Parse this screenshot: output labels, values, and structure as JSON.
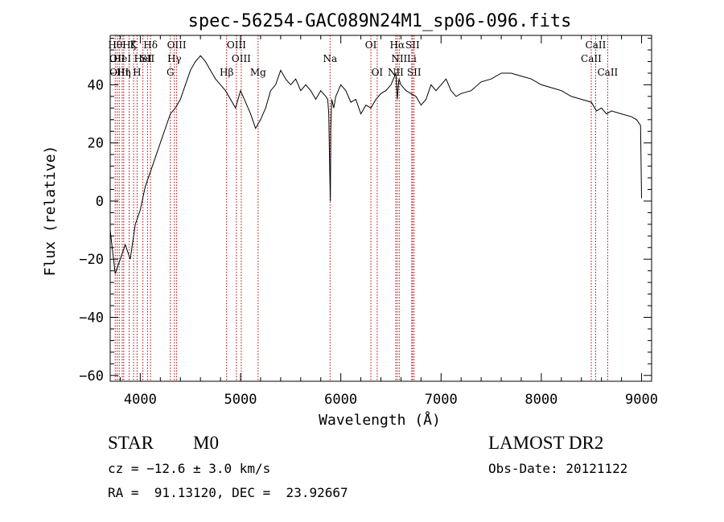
{
  "chart_data": {
    "type": "line",
    "title": "spec-56254-GAC089N24M1_sp06-096.fits",
    "xlabel": "Wavelength (Å)",
    "ylabel": "Flux (relative)",
    "xlim": [
      3700,
      9100
    ],
    "ylim": [
      -62,
      57
    ],
    "x_ticks": [
      4000,
      5000,
      6000,
      7000,
      8000,
      9000
    ],
    "y_ticks": [
      -60,
      -40,
      -20,
      0,
      20,
      40
    ],
    "grid": false,
    "line_color": "#000000",
    "marker_color": "#b00000",
    "series": [
      {
        "name": "flux",
        "x": [
          3700,
          3750,
          3800,
          3850,
          3900,
          3950,
          4000,
          4050,
          4100,
          4150,
          4200,
          4250,
          4300,
          4350,
          4400,
          4450,
          4500,
          4550,
          4600,
          4650,
          4700,
          4750,
          4800,
          4850,
          4900,
          4950,
          5000,
          5050,
          5100,
          5150,
          5200,
          5250,
          5300,
          5350,
          5400,
          5450,
          5500,
          5550,
          5600,
          5650,
          5700,
          5750,
          5800,
          5850,
          5870,
          5880,
          5890,
          5896,
          5900,
          5910,
          5930,
          5950,
          6000,
          6050,
          6100,
          6150,
          6200,
          6250,
          6300,
          6350,
          6400,
          6450,
          6500,
          6550,
          6563,
          6580,
          6600,
          6650,
          6700,
          6750,
          6800,
          6850,
          6900,
          6950,
          7000,
          7050,
          7100,
          7150,
          7200,
          7300,
          7400,
          7500,
          7600,
          7700,
          7800,
          7900,
          8000,
          8100,
          8200,
          8300,
          8400,
          8500,
          8550,
          8600,
          8650,
          8700,
          8800,
          8900,
          8950,
          8990,
          9000
        ],
        "y": [
          -10,
          -25,
          -20,
          -15,
          -20,
          -8,
          -3,
          5,
          10,
          15,
          20,
          25,
          30,
          32,
          35,
          40,
          45,
          48,
          50,
          48,
          45,
          42,
          40,
          38,
          35,
          32,
          38,
          34,
          30,
          25,
          28,
          32,
          38,
          40,
          45,
          42,
          40,
          42,
          38,
          40,
          38,
          35,
          38,
          36,
          35,
          30,
          10,
          0,
          25,
          35,
          32,
          36,
          40,
          38,
          34,
          35,
          30,
          33,
          32,
          35,
          37,
          38,
          40,
          44,
          35,
          42,
          40,
          38,
          37,
          36,
          33,
          35,
          40,
          38,
          40,
          42,
          38,
          36,
          37,
          38,
          41,
          42,
          44,
          44,
          43,
          42,
          40,
          39,
          38,
          36,
          35,
          34,
          31,
          32,
          30,
          31,
          30,
          29,
          28,
          26,
          1
        ]
      }
    ],
    "lines": [
      {
        "w": 3750,
        "label": "Hθ",
        "row": 0
      },
      {
        "w": 3770,
        "label": "OII",
        "row": 1
      },
      {
        "w": 3790,
        "label": "OIII",
        "row": 2
      },
      {
        "w": 3820,
        "label": "HeI",
        "row": 1
      },
      {
        "w": 3835,
        "label": "Hη",
        "row": 2
      },
      {
        "w": 3889,
        "label": "Hζ",
        "row": 0
      },
      {
        "w": 3933,
        "label": "K",
        "row": 0
      },
      {
        "w": 3968,
        "label": "H",
        "row": 2
      },
      {
        "w": 4026,
        "label": "HeI",
        "row": 1
      },
      {
        "w": 4072,
        "label": "SII",
        "row": 1
      },
      {
        "w": 4102,
        "label": "Hδ",
        "row": 0
      },
      {
        "w": 4300,
        "label": "G",
        "row": 2
      },
      {
        "w": 4340,
        "label": "Hγ",
        "row": 1
      },
      {
        "w": 4363,
        "label": "OIII",
        "row": 0
      },
      {
        "w": 4861,
        "label": "Hβ",
        "row": 2
      },
      {
        "w": 4959,
        "label": "OIII",
        "row": 0
      },
      {
        "w": 5007,
        "label": "OIII",
        "row": 1
      },
      {
        "w": 5175,
        "label": "Mg",
        "row": 2
      },
      {
        "w": 5893,
        "label": "Na",
        "row": 1
      },
      {
        "w": 6300,
        "label": "OI",
        "row": 0
      },
      {
        "w": 6363,
        "label": "OI",
        "row": 2
      },
      {
        "w": 6548,
        "label": "NII",
        "row": 2
      },
      {
        "w": 6563,
        "label": "Hα",
        "row": 0
      },
      {
        "w": 6583,
        "label": "NII",
        "row": 1
      },
      {
        "w": 6708,
        "label": "Li",
        "row": 1
      },
      {
        "w": 6716,
        "label": "SII",
        "row": 0
      },
      {
        "w": 6731,
        "label": "SII",
        "row": 2
      },
      {
        "w": 8498,
        "label": "CaII",
        "row": 1
      },
      {
        "w": 8542,
        "label": "CaII",
        "row": 0
      },
      {
        "w": 8662,
        "label": "CaII",
        "row": 2
      }
    ]
  },
  "info": {
    "class": "STAR",
    "subclass": "M0",
    "redshift": "cz = −12.6 ± 3.0 km/s",
    "coords": "RA =  91.13120, DEC =  23.92667",
    "survey": "LAMOST DR2",
    "obs_date": "Obs-Date: 20121122"
  }
}
